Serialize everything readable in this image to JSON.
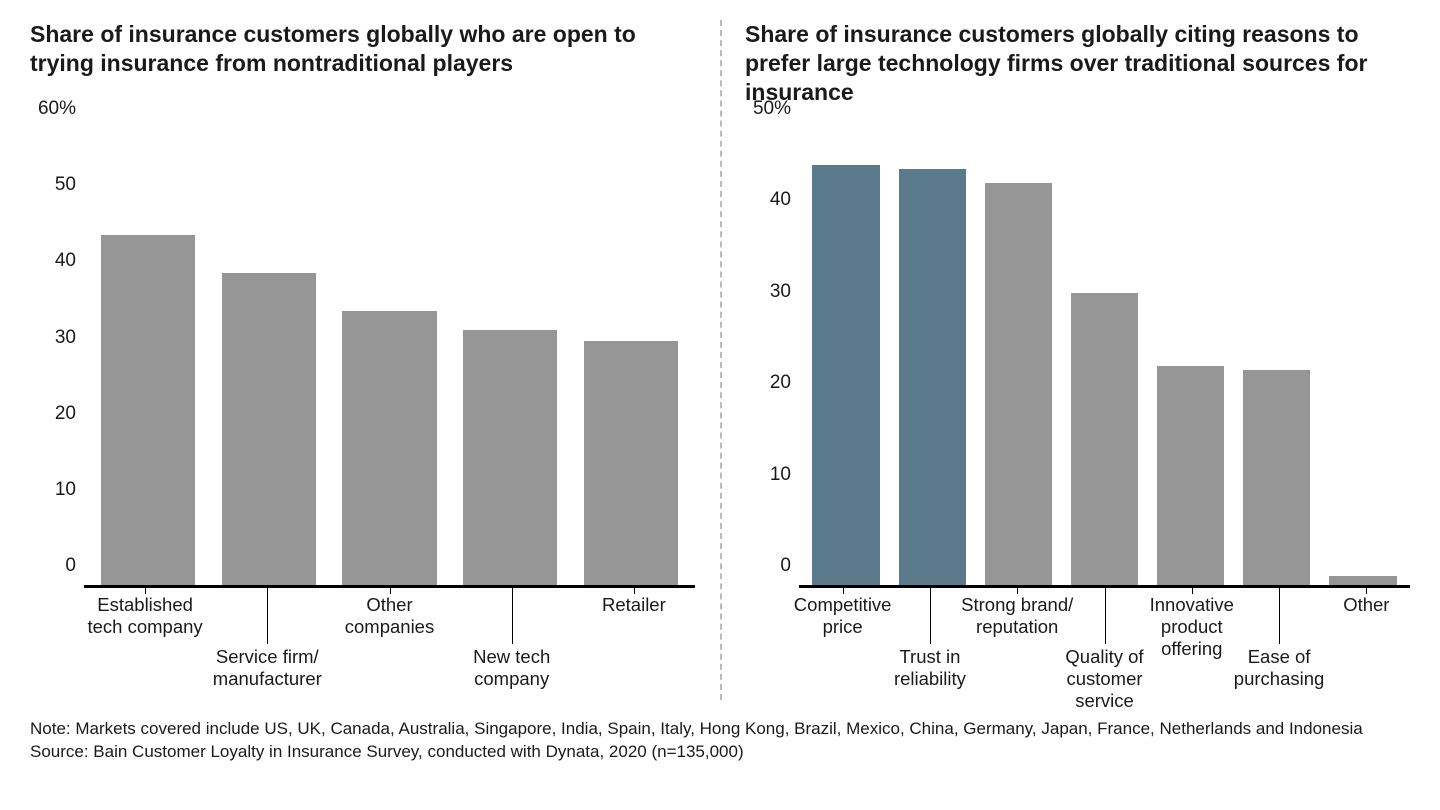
{
  "left_chart": {
    "type": "bar",
    "title": "Share of insurance customers globally who are open to trying insurance from nontraditional players",
    "ymax": 60,
    "yticks": [
      {
        "v": 0,
        "label": "0"
      },
      {
        "v": 10,
        "label": "10"
      },
      {
        "v": 20,
        "label": "20"
      },
      {
        "v": 30,
        "label": "30"
      },
      {
        "v": 40,
        "label": "40"
      },
      {
        "v": 50,
        "label": "50"
      },
      {
        "v": 60,
        "label": "60%"
      }
    ],
    "bars": [
      {
        "label": "Established\ntech company",
        "value": 46,
        "color": "#969696",
        "label_row": 0
      },
      {
        "label": "Service firm/\nmanufacturer",
        "value": 41,
        "color": "#969696",
        "label_row": 1
      },
      {
        "label": "Other\ncompanies",
        "value": 36,
        "color": "#969696",
        "label_row": 0
      },
      {
        "label": "New tech\ncompany",
        "value": 33.5,
        "color": "#969696",
        "label_row": 1
      },
      {
        "label": "Retailer",
        "value": 32,
        "color": "#969696",
        "label_row": 0
      }
    ],
    "bar_width_ratio": 0.78,
    "axis_color": "#000000",
    "background_color": "#ffffff",
    "title_fontsize": 23,
    "tick_fontsize": 19,
    "label_fontsize": 18.5
  },
  "right_chart": {
    "type": "bar",
    "title": "Share of insurance customers globally citing reasons to prefer large technology firms over traditional sources for insurance",
    "ymax": 50,
    "yticks": [
      {
        "v": 0,
        "label": "0"
      },
      {
        "v": 10,
        "label": "10"
      },
      {
        "v": 20,
        "label": "20"
      },
      {
        "v": 30,
        "label": "30"
      },
      {
        "v": 40,
        "label": "40"
      },
      {
        "v": 50,
        "label": "50%"
      }
    ],
    "bars": [
      {
        "label": "Competitive\nprice",
        "value": 46,
        "color": "#5a7a8c",
        "label_row": 0
      },
      {
        "label": "Trust in\nreliability",
        "value": 45.5,
        "color": "#5a7a8c",
        "label_row": 1
      },
      {
        "label": "Strong brand/\nreputation",
        "value": 44,
        "color": "#969696",
        "label_row": 0
      },
      {
        "label": "Quality of\ncustomer service",
        "value": 32,
        "color": "#969696",
        "label_row": 1
      },
      {
        "label": "Innovative\nproduct offering",
        "value": 24,
        "color": "#969696",
        "label_row": 0
      },
      {
        "label": "Ease of\npurchasing",
        "value": 23.5,
        "color": "#969696",
        "label_row": 1
      },
      {
        "label": "Other",
        "value": 1,
        "color": "#969696",
        "label_row": 0
      }
    ],
    "bar_width_ratio": 0.78,
    "axis_color": "#000000",
    "background_color": "#ffffff",
    "title_fontsize": 23,
    "tick_fontsize": 19,
    "label_fontsize": 18.5
  },
  "footer": {
    "note": "Note: Markets covered include US, UK, Canada, Australia, Singapore, India, Spain, Italy, Hong Kong, Brazil, Mexico, China, Germany, Japan, France, Netherlands and Indonesia",
    "source": "Source: Bain Customer Loyalty in Insurance Survey, conducted with Dynata, 2020 (n=135,000)"
  },
  "divider_color": "#bbbbbb"
}
